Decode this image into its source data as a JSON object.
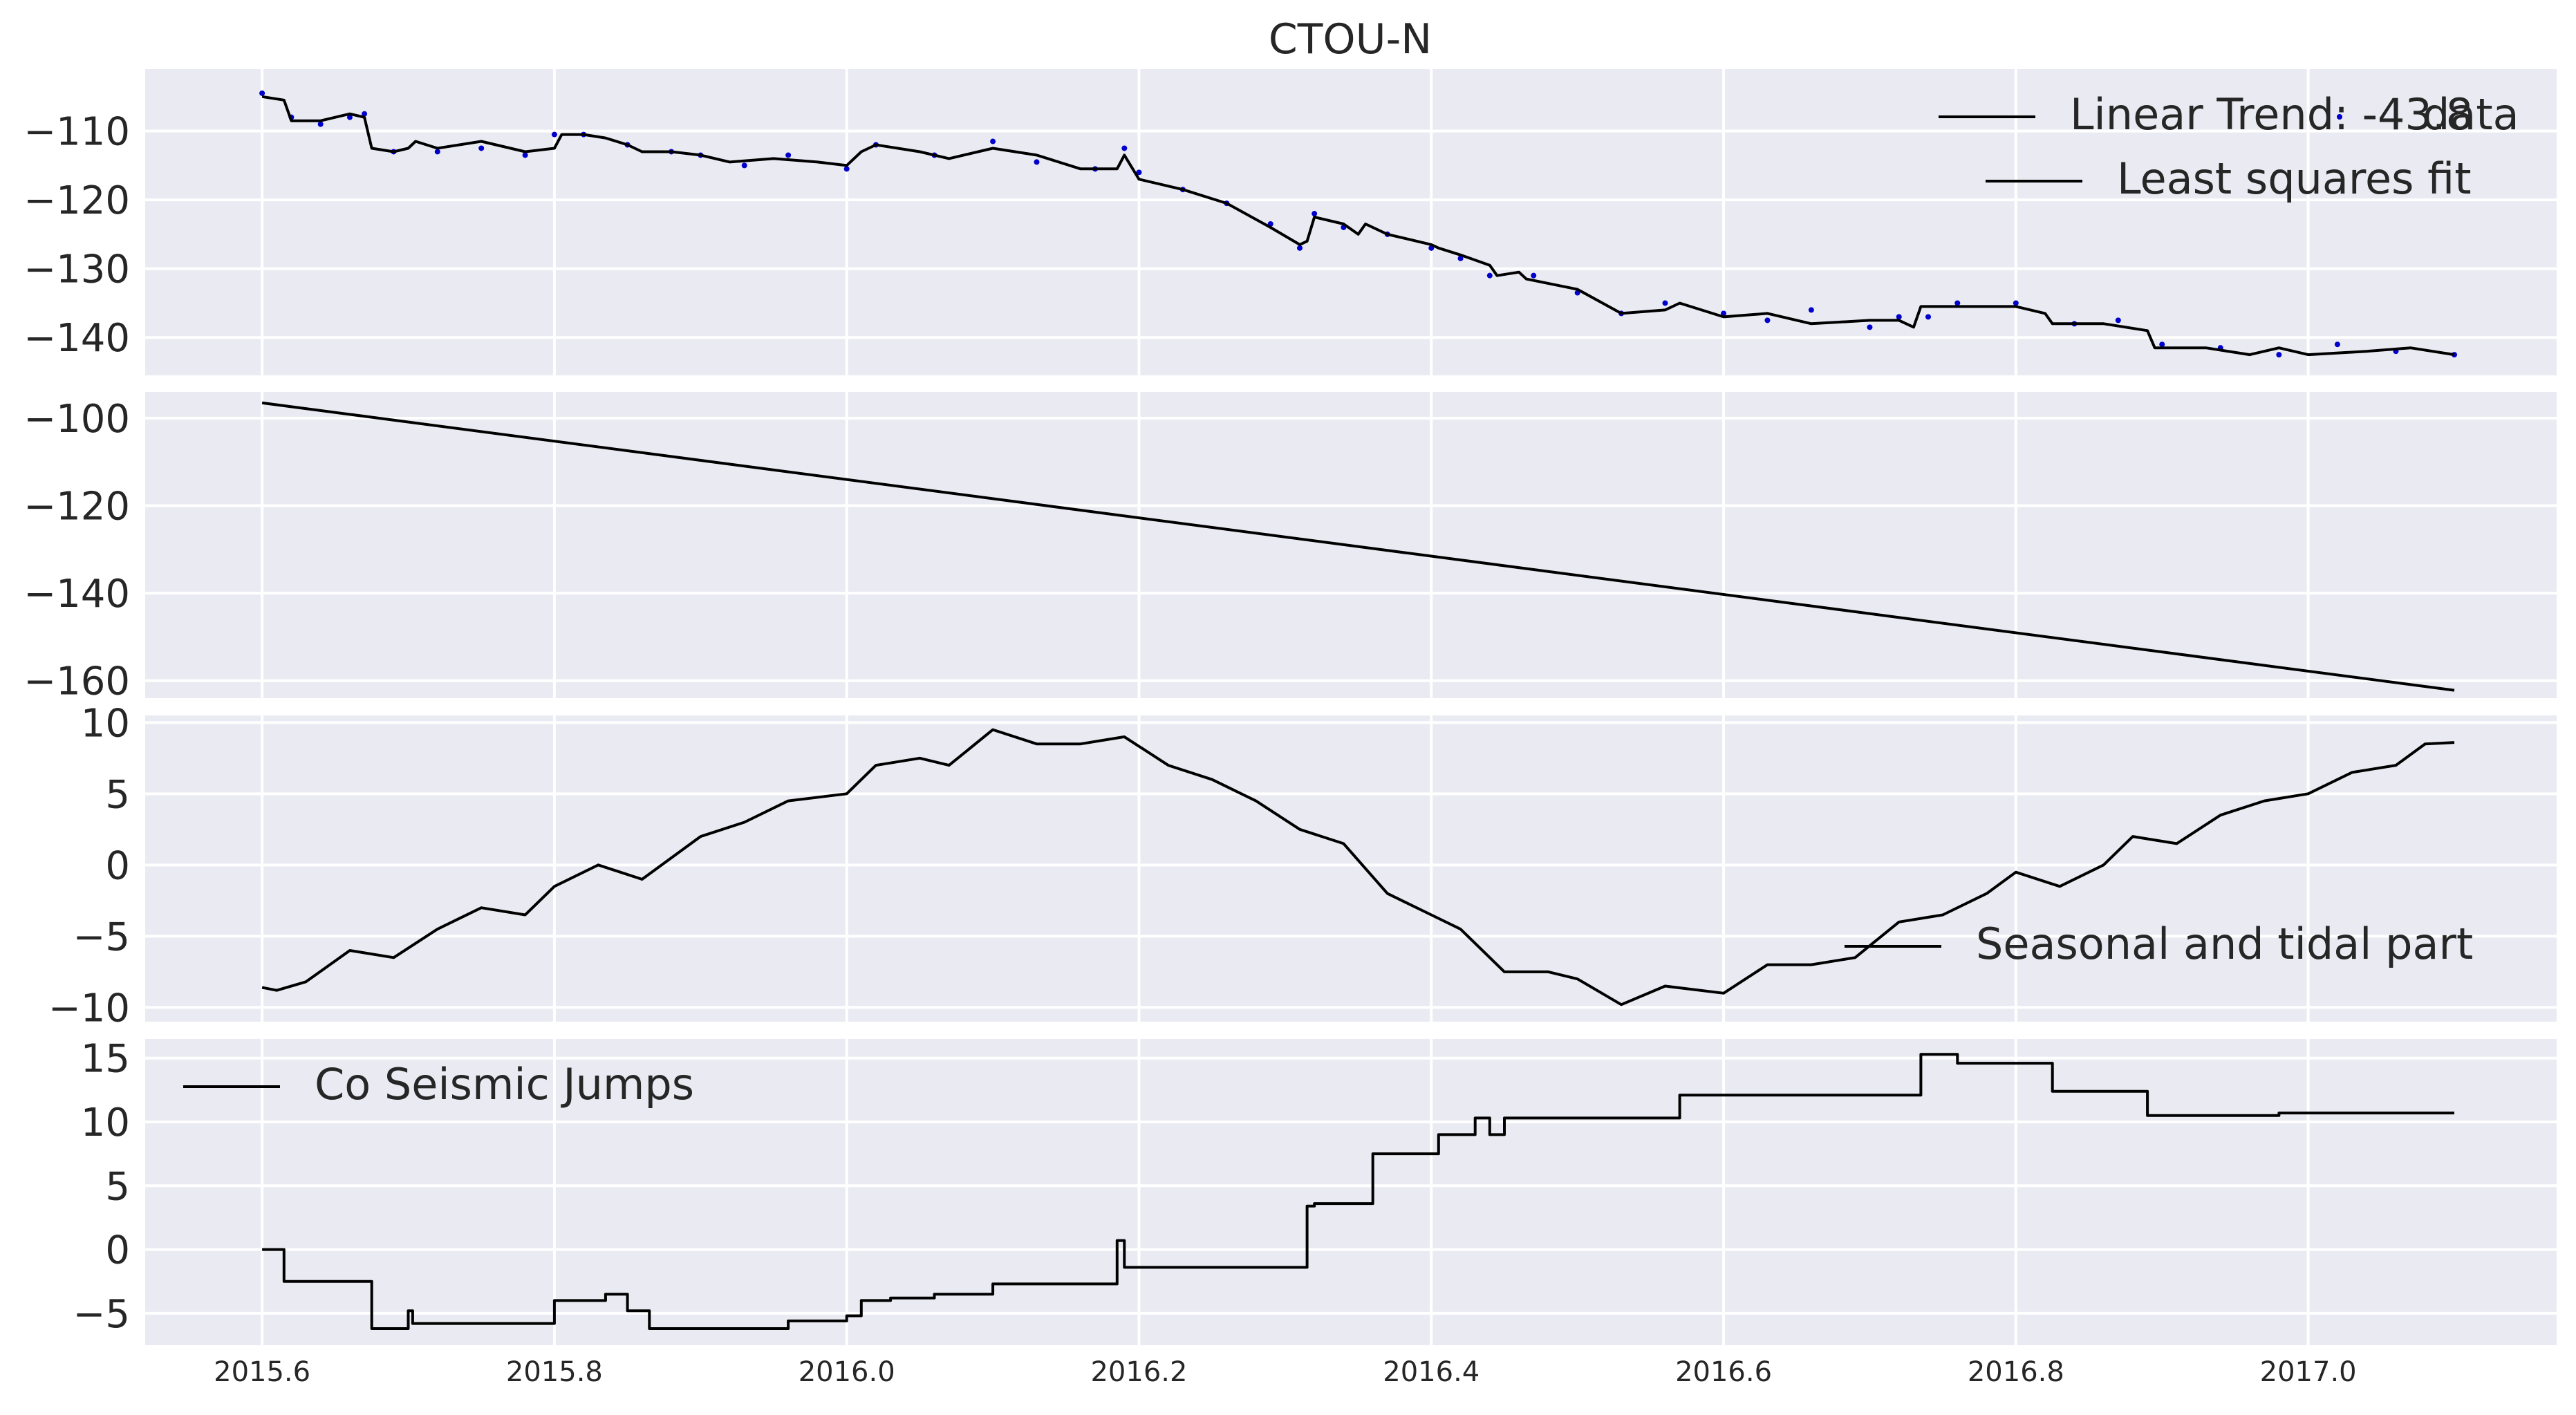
{
  "chart_data": {
    "title": "CTOU-N",
    "type": "line",
    "x_ticks": [
      "2015.6",
      "2015.8",
      "2016.0",
      "2016.2",
      "2016.4",
      "2016.6",
      "2016.8",
      "2017.0"
    ],
    "xlim": [
      2015.52,
      2017.17
    ],
    "grid": true,
    "panels": [
      {
        "id": "fit",
        "ylim": [
          -145.5,
          -101
        ],
        "y_ticks": [
          -110,
          -120,
          -130,
          -140
        ],
        "legend_position": "top-right",
        "series": [
          {
            "name": "data",
            "kind": "scatter",
            "color": "#0000cc",
            "x": [
              2015.6,
              2015.62,
              2015.64,
              2015.66,
              2015.67,
              2015.69,
              2015.72,
              2015.75,
              2015.78,
              2015.8,
              2015.82,
              2015.85,
              2015.88,
              2015.9,
              2015.93,
              2015.96,
              2016.0,
              2016.02,
              2016.06,
              2016.1,
              2016.13,
              2016.17,
              2016.19,
              2016.2,
              2016.23,
              2016.26,
              2016.29,
              2016.31,
              2016.32,
              2016.34,
              2016.37,
              2016.4,
              2016.42,
              2016.44,
              2016.47,
              2016.5,
              2016.53,
              2016.56,
              2016.6,
              2016.63,
              2016.66,
              2016.7,
              2016.72,
              2016.74,
              2016.76,
              2016.8,
              2016.84,
              2016.87,
              2016.9,
              2016.94,
              2016.98,
              2017.02,
              2017.06,
              2017.1
            ],
            "y": [
              -104.5,
              -108,
              -109,
              -108,
              -107.5,
              -113,
              -113,
              -112.5,
              -113.5,
              -110.5,
              -110.5,
              -112,
              -113,
              -113.5,
              -115,
              -113.5,
              -115.5,
              -112,
              -113.5,
              -111.5,
              -114.5,
              -115.5,
              -112.5,
              -116,
              -118.5,
              -120.5,
              -123.5,
              -127,
              -122,
              -124,
              -125,
              -127,
              -128.5,
              -131,
              -131,
              -133.5,
              -136.5,
              -135,
              -136.5,
              -137.5,
              -136,
              -138.5,
              -137,
              -137,
              -135,
              -135,
              -138,
              -137.5,
              -141,
              -141.5,
              -142.5,
              -141,
              -142,
              -142.5
            ]
          },
          {
            "name": "Least squares fit",
            "kind": "line",
            "color": "#000000",
            "x": [
              2015.6,
              2015.615,
              2015.62,
              2015.64,
              2015.66,
              2015.67,
              2015.675,
              2015.69,
              2015.7,
              2015.705,
              2015.72,
              2015.75,
              2015.78,
              2015.8,
              2015.805,
              2015.82,
              2015.835,
              2015.85,
              2015.86,
              2015.88,
              2015.9,
              2015.92,
              2015.95,
              2015.98,
              2016.0,
              2016.01,
              2016.02,
              2016.05,
              2016.07,
              2016.1,
              2016.13,
              2016.16,
              2016.185,
              2016.19,
              2016.2,
              2016.23,
              2016.26,
              2016.29,
              2016.31,
              2016.315,
              2016.32,
              2016.34,
              2016.35,
              2016.355,
              2016.37,
              2016.4,
              2016.405,
              2016.42,
              2016.44,
              2016.445,
              2016.46,
              2016.465,
              2016.5,
              2016.53,
              2016.56,
              2016.57,
              2016.6,
              2016.63,
              2016.66,
              2016.7,
              2016.72,
              2016.73,
              2016.735,
              2016.76,
              2016.8,
              2016.82,
              2016.825,
              2016.86,
              2016.89,
              2016.895,
              2016.93,
              2016.96,
              2016.98,
              2017.0,
              2017.04,
              2017.07,
              2017.1
            ],
            "y": [
              -105,
              -105.5,
              -108.5,
              -108.5,
              -107.5,
              -108,
              -112.5,
              -113,
              -112.5,
              -111.5,
              -112.5,
              -111.5,
              -113,
              -112.5,
              -110.5,
              -110.5,
              -111,
              -112,
              -113,
              -113,
              -113.5,
              -114.5,
              -114,
              -114.5,
              -115,
              -113,
              -112,
              -113,
              -114,
              -112.5,
              -113.5,
              -115.5,
              -115.5,
              -113.5,
              -117,
              -118.5,
              -120.5,
              -124,
              -126.5,
              -126,
              -122.5,
              -123.5,
              -125,
              -123.5,
              -125,
              -126.5,
              -127,
              -128,
              -129.5,
              -131,
              -130.5,
              -131.5,
              -133,
              -136.5,
              -136,
              -135,
              -137,
              -136.5,
              -138,
              -137.5,
              -137.5,
              -138.5,
              -135.5,
              -135.5,
              -135.5,
              -136.5,
              -138,
              -138,
              -139,
              -141.5,
              -141.5,
              -142.5,
              -141.5,
              -142.5,
              -142,
              -141.5,
              -142.5
            ]
          }
        ]
      },
      {
        "id": "trend",
        "ylim": [
          -164,
          -94
        ],
        "y_ticks": [
          -100,
          -120,
          -140,
          -160
        ],
        "legend_position": "top-right",
        "series": [
          {
            "name": "Linear Trend: -43.8",
            "kind": "line",
            "color": "#000000",
            "x": [
              2015.6,
              2017.1
            ],
            "y": [
              -96.5,
              -162.2
            ]
          }
        ]
      },
      {
        "id": "seasonal",
        "ylim": [
          -11,
          10.5
        ],
        "y_ticks": [
          10,
          5,
          0,
          -5,
          -10
        ],
        "legend_position": "lower-right",
        "series": [
          {
            "name": "Seasonal and tidal part",
            "kind": "line",
            "color": "#000000",
            "x": [
              2015.6,
              2015.61,
              2015.63,
              2015.66,
              2015.69,
              2015.72,
              2015.75,
              2015.78,
              2015.8,
              2015.83,
              2015.86,
              2015.9,
              2015.93,
              2015.96,
              2016.0,
              2016.02,
              2016.05,
              2016.07,
              2016.1,
              2016.13,
              2016.16,
              2016.19,
              2016.22,
              2016.25,
              2016.28,
              2016.31,
              2016.34,
              2016.37,
              2016.4,
              2016.42,
              2016.45,
              2016.48,
              2016.5,
              2016.53,
              2016.56,
              2016.6,
              2016.63,
              2016.66,
              2016.69,
              2016.72,
              2016.75,
              2016.78,
              2016.8,
              2016.83,
              2016.86,
              2016.88,
              2016.91,
              2016.94,
              2016.97,
              2017.0,
              2017.03,
              2017.06,
              2017.08,
              2017.1
            ],
            "y": [
              -8.6,
              -8.8,
              -8.2,
              -6,
              -6.5,
              -4.5,
              -3,
              -3.5,
              -1.5,
              0,
              -1,
              2,
              3,
              4.5,
              5,
              7,
              7.5,
              7,
              9.5,
              8.5,
              8.5,
              9,
              7,
              6,
              4.5,
              2.5,
              1.5,
              -2,
              -3.5,
              -4.5,
              -7.5,
              -7.5,
              -8,
              -9.8,
              -8.5,
              -9,
              -7,
              -7,
              -6.5,
              -4,
              -3.5,
              -2,
              -0.5,
              -1.5,
              0,
              2,
              1.5,
              3.5,
              4.5,
              5,
              6.5,
              7,
              8.5,
              8.6
            ]
          }
        ]
      },
      {
        "id": "jumps",
        "ylim": [
          -7.5,
          16.5
        ],
        "y_ticks": [
          15,
          10,
          5,
          0,
          -5
        ],
        "legend_position": "top-left",
        "series": [
          {
            "name": "Co Seismic Jumps",
            "kind": "step",
            "color": "#000000",
            "x": [
              2015.6,
              2015.615,
              2015.675,
              2015.7,
              2015.703,
              2015.8,
              2015.835,
              2015.85,
              2015.865,
              2015.96,
              2016.0,
              2016.01,
              2016.03,
              2016.06,
              2016.1,
              2016.185,
              2016.19,
              2016.315,
              2016.32,
              2016.36,
              2016.405,
              2016.43,
              2016.44,
              2016.45,
              2016.57,
              2016.735,
              2016.76,
              2016.825,
              2016.89,
              2016.98,
              2017.1
            ],
            "y": [
              0,
              -2.5,
              -6.2,
              -4.8,
              -5.8,
              -4,
              -3.5,
              -4.8,
              -6.2,
              -5.6,
              -5.2,
              -4,
              -3.8,
              -3.5,
              -2.7,
              0.7,
              -1.4,
              3.4,
              3.6,
              7.5,
              9,
              10.3,
              9,
              10.3,
              12.1,
              15.3,
              14.6,
              12.4,
              10.5,
              10.7,
              10.7
            ]
          }
        ]
      }
    ]
  }
}
